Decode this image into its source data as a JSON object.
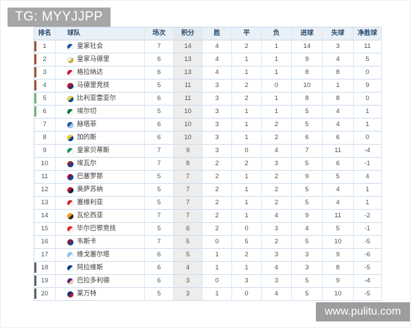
{
  "banner": {
    "text": "TG: MYYJJPP"
  },
  "watermark": {
    "text": "www.pulitu.com"
  },
  "table": {
    "columns": [
      "排名",
      "球队",
      "场次",
      "积分",
      "胜",
      "平",
      "负",
      "进球",
      "失球",
      "净胜球"
    ],
    "zone_colors": {
      "ucl": "#a3502f",
      "uel": "#74b174",
      "rel": "#5d6065"
    },
    "rows": [
      {
        "rank": "1",
        "team": "皇家社会",
        "played": "7",
        "points": "14",
        "win": "4",
        "draw": "2",
        "loss": "1",
        "gf": "14",
        "ga": "3",
        "gd": "11",
        "zone": "ucl",
        "crest": [
          "#1857a4",
          "#ffffff"
        ]
      },
      {
        "rank": "2",
        "team": "皇家马德里",
        "played": "6",
        "points": "13",
        "win": "4",
        "draw": "1",
        "loss": "1",
        "gf": "9",
        "ga": "4",
        "gd": "5",
        "zone": "ucl",
        "crest": [
          "#f2f2f2",
          "#d4af37"
        ]
      },
      {
        "rank": "3",
        "team": "格拉纳达",
        "played": "6",
        "points": "13",
        "win": "4",
        "draw": "1",
        "loss": "1",
        "gf": "8",
        "ga": "8",
        "gd": "0",
        "zone": "ucl",
        "crest": [
          "#c61d2e",
          "#ffffff"
        ]
      },
      {
        "rank": "4",
        "team": "马德里竞技",
        "played": "5",
        "points": "11",
        "win": "3",
        "draw": "2",
        "loss": "0",
        "gf": "10",
        "ga": "1",
        "gd": "9",
        "zone": "ucl",
        "crest": [
          "#c8102e",
          "#1b3a6b"
        ]
      },
      {
        "rank": "5",
        "team": "比利亚雷亚尔",
        "played": "6",
        "points": "11",
        "win": "3",
        "draw": "2",
        "loss": "1",
        "gf": "8",
        "ga": "8",
        "gd": "0",
        "zone": "uel",
        "crest": [
          "#f4d23c",
          "#005187"
        ]
      },
      {
        "rank": "6",
        "team": "埃尔切",
        "played": "5",
        "points": "10",
        "win": "3",
        "draw": "1",
        "loss": "1",
        "gf": "5",
        "ga": "4",
        "gd": "1",
        "zone": "uel",
        "crest": [
          "#0a7d2c",
          "#ffffff"
        ]
      },
      {
        "rank": "7",
        "team": "赫塔菲",
        "played": "6",
        "points": "10",
        "win": "3",
        "draw": "1",
        "loss": "2",
        "gf": "5",
        "ga": "4",
        "gd": "1",
        "zone": "",
        "crest": [
          "#1b5ba0",
          "#9ecbf0"
        ]
      },
      {
        "rank": "8",
        "team": "加的斯",
        "played": "6",
        "points": "10",
        "win": "3",
        "draw": "1",
        "loss": "2",
        "gf": "6",
        "ga": "6",
        "gd": "0",
        "zone": "",
        "crest": [
          "#f6d000",
          "#0045a0"
        ]
      },
      {
        "rank": "9",
        "team": "皇家贝蒂斯",
        "played": "7",
        "points": "9",
        "win": "3",
        "draw": "0",
        "loss": "4",
        "gf": "7",
        "ga": "11",
        "gd": "-4",
        "zone": "",
        "crest": [
          "#0a9b53",
          "#ffffff"
        ]
      },
      {
        "rank": "10",
        "team": "埃瓦尔",
        "played": "7",
        "points": "8",
        "win": "2",
        "draw": "2",
        "loss": "3",
        "gf": "5",
        "ga": "6",
        "gd": "-1",
        "zone": "",
        "crest": [
          "#98272e",
          "#1b3f94"
        ]
      },
      {
        "rank": "11",
        "team": "巴塞罗那",
        "played": "5",
        "points": "7",
        "win": "2",
        "draw": "1",
        "loss": "2",
        "gf": "9",
        "ga": "5",
        "gd": "4",
        "zone": "",
        "crest": [
          "#a50044",
          "#004d98"
        ]
      },
      {
        "rank": "12",
        "team": "奥萨苏纳",
        "played": "5",
        "points": "7",
        "win": "2",
        "draw": "1",
        "loss": "2",
        "gf": "5",
        "ga": "4",
        "gd": "1",
        "zone": "",
        "crest": [
          "#d80f2f",
          "#0a2240"
        ]
      },
      {
        "rank": "13",
        "team": "塞维利亚",
        "played": "5",
        "points": "7",
        "win": "2",
        "draw": "1",
        "loss": "2",
        "gf": "5",
        "ga": "4",
        "gd": "1",
        "zone": "",
        "crest": [
          "#d8232a",
          "#ffffff"
        ]
      },
      {
        "rank": "14",
        "team": "瓦伦西亚",
        "played": "7",
        "points": "7",
        "win": "2",
        "draw": "1",
        "loss": "4",
        "gf": "9",
        "ga": "11",
        "gd": "-2",
        "zone": "",
        "crest": [
          "#f39c12",
          "#2b2b2b"
        ]
      },
      {
        "rank": "15",
        "team": "毕尔巴鄂竞技",
        "played": "5",
        "points": "6",
        "win": "2",
        "draw": "0",
        "loss": "3",
        "gf": "4",
        "ga": "5",
        "gd": "-1",
        "zone": "",
        "crest": [
          "#ee2523",
          "#ffffff"
        ]
      },
      {
        "rank": "16",
        "team": "韦斯卡",
        "played": "7",
        "points": "5",
        "win": "0",
        "draw": "5",
        "loss": "2",
        "gf": "5",
        "ga": "10",
        "gd": "-5",
        "zone": "",
        "crest": [
          "#8a1e41",
          "#1b3f94"
        ]
      },
      {
        "rank": "17",
        "team": "维戈塞尔塔",
        "played": "6",
        "points": "5",
        "win": "1",
        "draw": "2",
        "loss": "3",
        "gf": "3",
        "ga": "9",
        "gd": "-6",
        "zone": "",
        "crest": [
          "#8ac3ee",
          "#ffffff"
        ]
      },
      {
        "rank": "18",
        "team": "阿拉维斯",
        "played": "6",
        "points": "4",
        "win": "1",
        "draw": "1",
        "loss": "4",
        "gf": "3",
        "ga": "8",
        "gd": "-5",
        "zone": "rel",
        "crest": [
          "#0b3b91",
          "#ffffff"
        ]
      },
      {
        "rank": "19",
        "team": "巴拉多利德",
        "played": "6",
        "points": "3",
        "win": "0",
        "draw": "3",
        "loss": "3",
        "gf": "5",
        "ga": "9",
        "gd": "-4",
        "zone": "rel",
        "crest": [
          "#6a1b9a",
          "#e8d9a0"
        ]
      },
      {
        "rank": "20",
        "team": "莱万特",
        "played": "5",
        "points": "3",
        "win": "1",
        "draw": "0",
        "loss": "4",
        "gf": "5",
        "ga": "10",
        "gd": "-5",
        "zone": "rel",
        "crest": [
          "#0a3b7c",
          "#b01432"
        ]
      }
    ]
  }
}
